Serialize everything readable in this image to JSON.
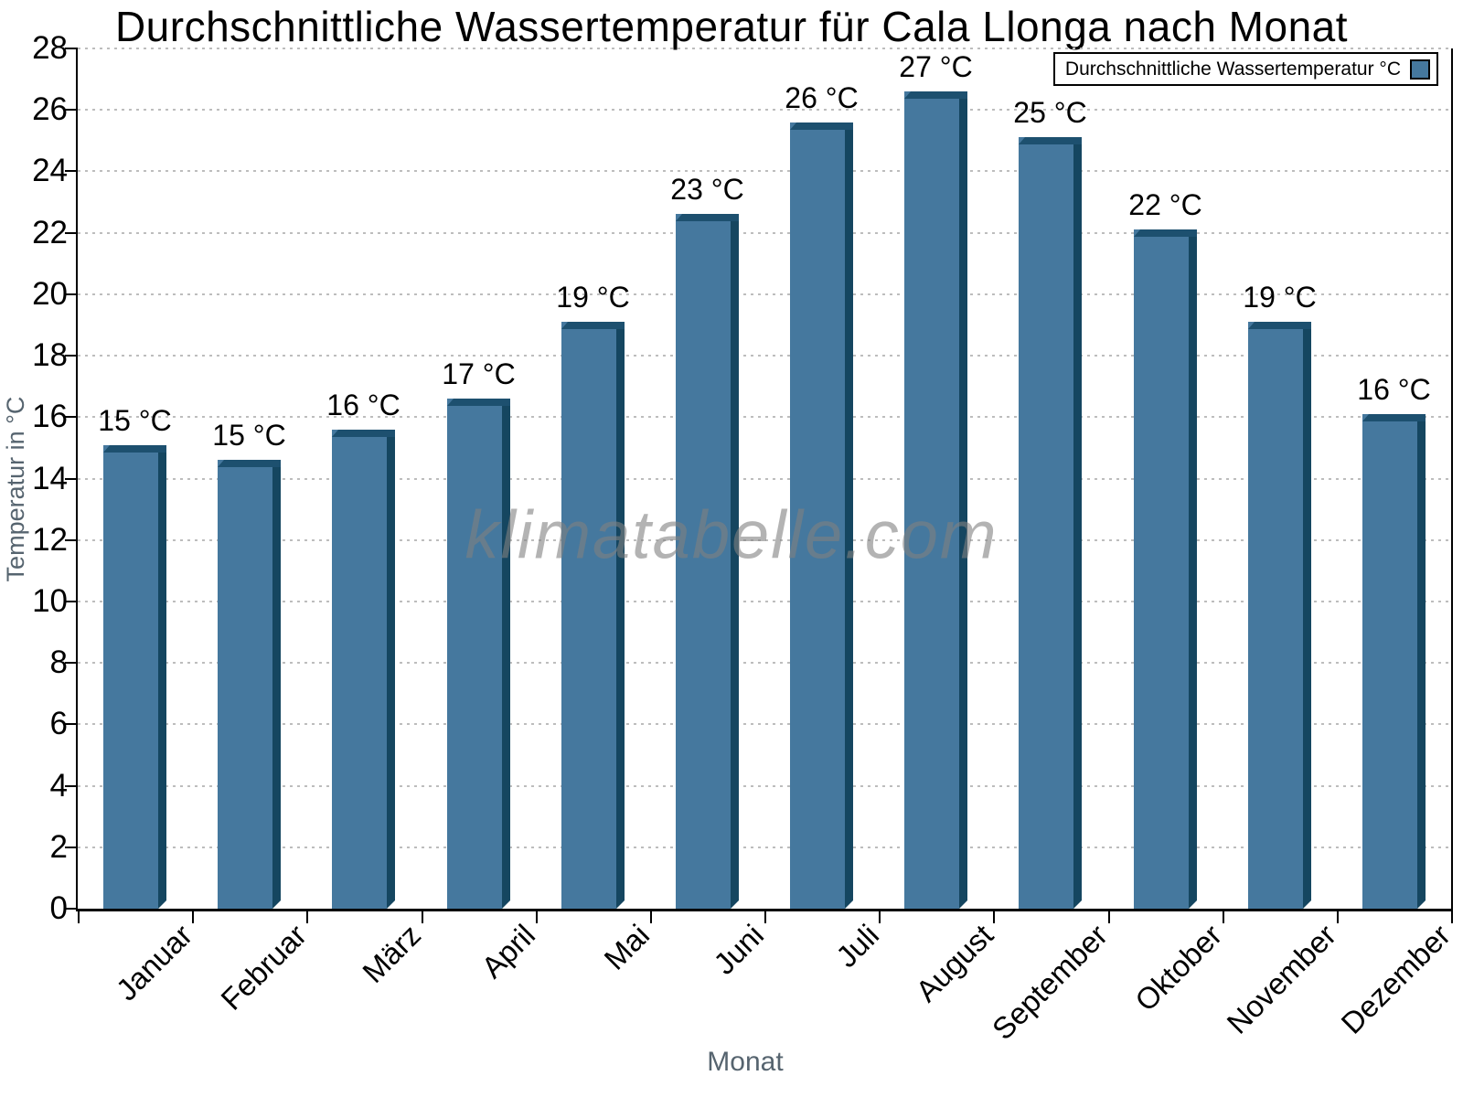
{
  "title": "Durchschnittliche Wassertemperatur für Cala Llonga nach Monat",
  "legend": {
    "label": "Durchschnittliche Wassertemperatur °C"
  },
  "watermark": "klimatabelle.com",
  "chart_data": {
    "type": "bar",
    "title": "Durchschnittliche Wassertemperatur für Cala Llonga nach Monat",
    "series_name": "Durchschnittliche Wassertemperatur °C",
    "categories": [
      "Januar",
      "Februar",
      "März",
      "April",
      "Mai",
      "Juni",
      "Juli",
      "August",
      "September",
      "Oktober",
      "November",
      "Dezember"
    ],
    "values": [
      15.1,
      14.6,
      15.6,
      16.6,
      19.1,
      22.6,
      25.6,
      26.6,
      25.1,
      22.1,
      19.1,
      16.1
    ],
    "bar_labels": [
      "15 °C",
      "15 °C",
      "16 °C",
      "17 °C",
      "19 °C",
      "23 °C",
      "26 °C",
      "27 °C",
      "25 °C",
      "22 °C",
      "19 °C",
      "16 °C"
    ],
    "xlabel": "Monat",
    "ylabel": "Temperatur in °C",
    "ylim": [
      0,
      28
    ],
    "yticks": [
      0,
      2,
      4,
      6,
      8,
      10,
      12,
      14,
      16,
      18,
      20,
      22,
      24,
      26,
      28
    ],
    "grid": true,
    "legend_position": "top-right",
    "watermark_text": "klimatabelle.com",
    "colors": {
      "bar_face": "#45789E",
      "bar_side": "#154660",
      "bar_top": "#1D506F",
      "grid": "#bdbdbd",
      "axis": "#000000",
      "axis_title_grey": "#56646F",
      "watermark_grey": "rgba(128,128,128,0.6)"
    }
  }
}
